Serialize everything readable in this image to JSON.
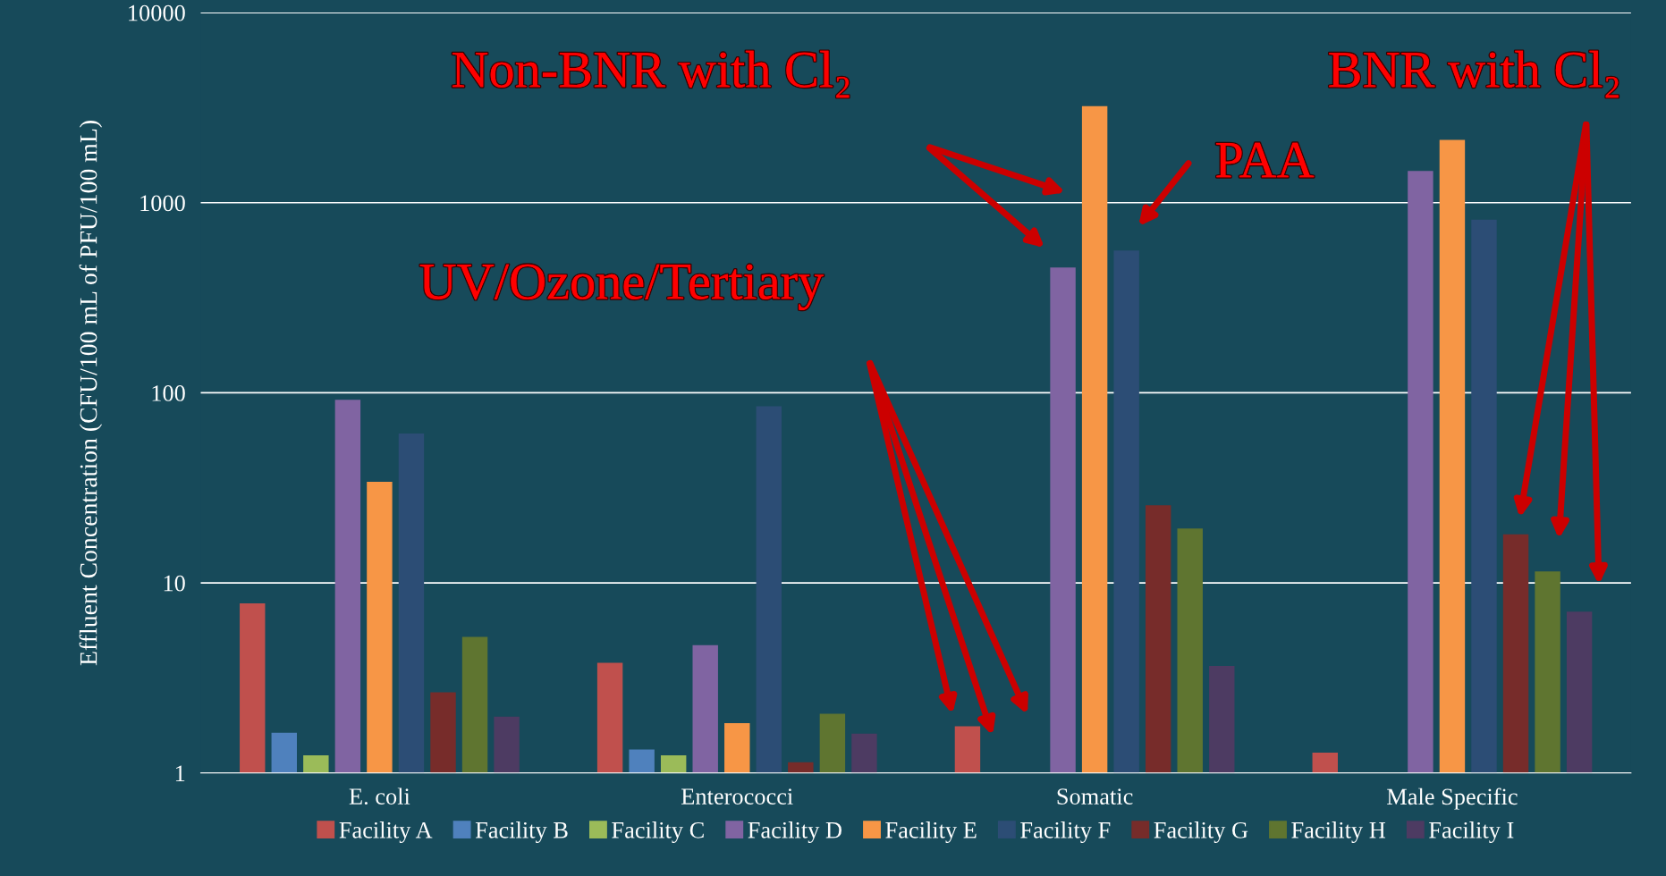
{
  "chart_data": {
    "type": "bar",
    "ylabel": "Effluent Concentration (CFU/100 mL of PFU/100 mL)",
    "categories": [
      "E. coli",
      "Enterococci",
      "Somatic",
      "Male Specific"
    ],
    "log": "y",
    "ylim": [
      1,
      10000
    ],
    "yticks": [
      1,
      10,
      100,
      1000,
      10000
    ],
    "grid": "y",
    "legend": "bottom",
    "series": [
      {
        "name": "Facility A",
        "color": "#c0504d",
        "values": [
          7.8,
          3.8,
          1.76,
          1.28
        ]
      },
      {
        "name": "Facility B",
        "color": "#4f81bd",
        "values": [
          1.63,
          1.33,
          null,
          null
        ]
      },
      {
        "name": "Facility C",
        "color": "#9bbb59",
        "values": [
          1.24,
          1.24,
          null,
          null
        ]
      },
      {
        "name": "Facility D",
        "color": "#8064a2",
        "values": [
          92,
          4.7,
          456,
          1470
        ]
      },
      {
        "name": "Facility E",
        "color": "#f79646",
        "values": [
          34,
          1.83,
          3220,
          2140
        ]
      },
      {
        "name": "Facility F",
        "color": "#2c4d75",
        "values": [
          61,
          85,
          561,
          814
        ]
      },
      {
        "name": "Facility G",
        "color": "#772c2a",
        "values": [
          2.66,
          1.14,
          25.6,
          18
        ]
      },
      {
        "name": "Facility H",
        "color": "#5f7530",
        "values": [
          5.2,
          2.05,
          19.3,
          11.5
        ]
      },
      {
        "name": "Facility I",
        "color": "#4d3b62",
        "values": [
          1.98,
          1.61,
          3.66,
          7.06
        ]
      }
    ],
    "annotations": [
      "Non-BNR with Cl₂",
      "PAA",
      "UV/Ozone/Tertiary",
      "BNR with Cl₂"
    ]
  }
}
